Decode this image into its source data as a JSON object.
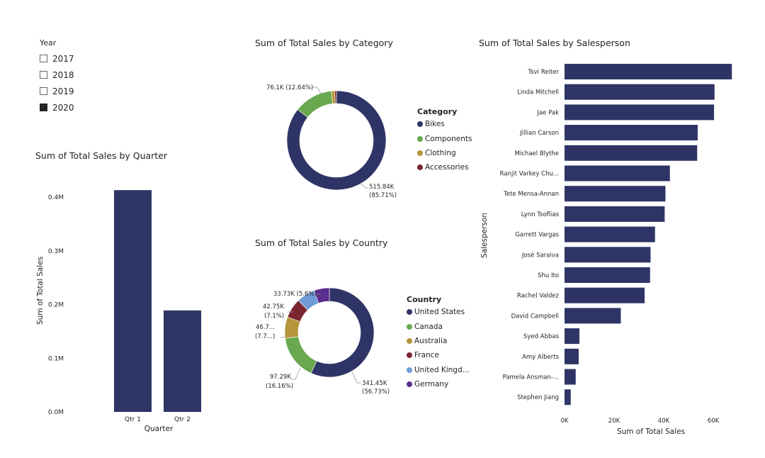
{
  "slicer": {
    "title": "Year",
    "options": [
      {
        "label": "2017",
        "checked": false
      },
      {
        "label": "2018",
        "checked": false
      },
      {
        "label": "2019",
        "checked": false
      },
      {
        "label": "2020",
        "checked": true
      }
    ]
  },
  "colors": {
    "navy": "#2e3566",
    "green": "#6aa84f",
    "gold": "#b5963c",
    "darkred": "#7a2530",
    "lightblue": "#6f9bd6",
    "purple": "#5b2d8e"
  },
  "chart_data": [
    {
      "id": "quarter",
      "type": "bar",
      "title": "Sum of Total Sales by Quarter",
      "xlabel": "Quarter",
      "ylabel": "Sum of Total Sales",
      "categories": [
        "Qtr 1",
        "Qtr 2"
      ],
      "values": [
        413000,
        189000
      ],
      "ylim": [
        0,
        400000
      ],
      "yticks": [
        0,
        100000,
        200000,
        300000,
        400000
      ],
      "ytick_labels": [
        "0.0M",
        "0.1M",
        "0.2M",
        "0.3M",
        "0.4M"
      ],
      "color": "#2e3566",
      "grid": false
    },
    {
      "id": "category",
      "type": "pie",
      "donut": true,
      "title": "Sum of Total Sales by Category",
      "legend_title": "Category",
      "legend_position": "right",
      "slices": [
        {
          "label": "Bikes",
          "value": 515840,
          "color": "#2e3566",
          "data_label": [
            "515.84K",
            "(85.71%)"
          ]
        },
        {
          "label": "Components",
          "value": 76100,
          "color": "#6aa84f",
          "data_label": [
            "76.1K (12.64%)"
          ]
        },
        {
          "label": "Clothing",
          "value": 6700,
          "color": "#b5963c",
          "data_label": []
        },
        {
          "label": "Accessories",
          "value": 3200,
          "color": "#7a2530",
          "data_label": []
        }
      ]
    },
    {
      "id": "country",
      "type": "pie",
      "donut": true,
      "title": "Sum of Total Sales by Country",
      "legend_title": "Country",
      "legend_position": "right",
      "slices": [
        {
          "label": "United States",
          "value": 341450,
          "color": "#2e3566",
          "data_label": [
            "341.45K",
            "(56.73%)"
          ]
        },
        {
          "label": "Canada",
          "value": 97290,
          "color": "#6aa84f",
          "data_label": [
            "97.29K",
            "(16.16%)"
          ]
        },
        {
          "label": "Australia",
          "value": 46700,
          "color": "#b5963c",
          "data_label": [
            "46.7...",
            "(7.7...)"
          ]
        },
        {
          "label": "France",
          "value": 42750,
          "color": "#7a2530",
          "data_label": [
            "42.75K",
            "(7.1%)"
          ]
        },
        {
          "label": "United Kingd...",
          "value": 40000,
          "color": "#6f9bd6",
          "data_label": []
        },
        {
          "label": "Germany",
          "value": 33730,
          "color": "#5b2d8e",
          "data_label": [
            "33.73K (5.6%)"
          ]
        }
      ]
    },
    {
      "id": "salesperson",
      "type": "bar",
      "orientation": "horizontal",
      "title": "Sum of Total Sales by Salesperson",
      "xlabel": "Sum of Total Sales",
      "ylabel": "Salesperson",
      "categories": [
        "Tsvi Reiter",
        "Linda Mitchell",
        "Jae Pak",
        "Jillian Carson",
        "Michael Blythe",
        "Ranjit Varkey Chu...",
        "Tete Mensa-Annan",
        "Lynn Tsoflias",
        "Garrett Vargas",
        "José Saraiva",
        "Shu Ito",
        "Rachel Valdez",
        "David Campbell",
        "Syed Abbas",
        "Amy Alberts",
        "Pamela Ansman-...",
        "Stephen Jiang"
      ],
      "values": [
        67500,
        60500,
        60300,
        53700,
        53500,
        42500,
        40700,
        40400,
        36500,
        34700,
        34500,
        32300,
        22700,
        6000,
        5700,
        4500,
        2500
      ],
      "xlim": [
        0,
        70000
      ],
      "xticks": [
        0,
        20000,
        40000,
        60000
      ],
      "xtick_labels": [
        "0K",
        "20K",
        "40K",
        "60K"
      ],
      "color": "#2e3566",
      "grid": false
    }
  ]
}
